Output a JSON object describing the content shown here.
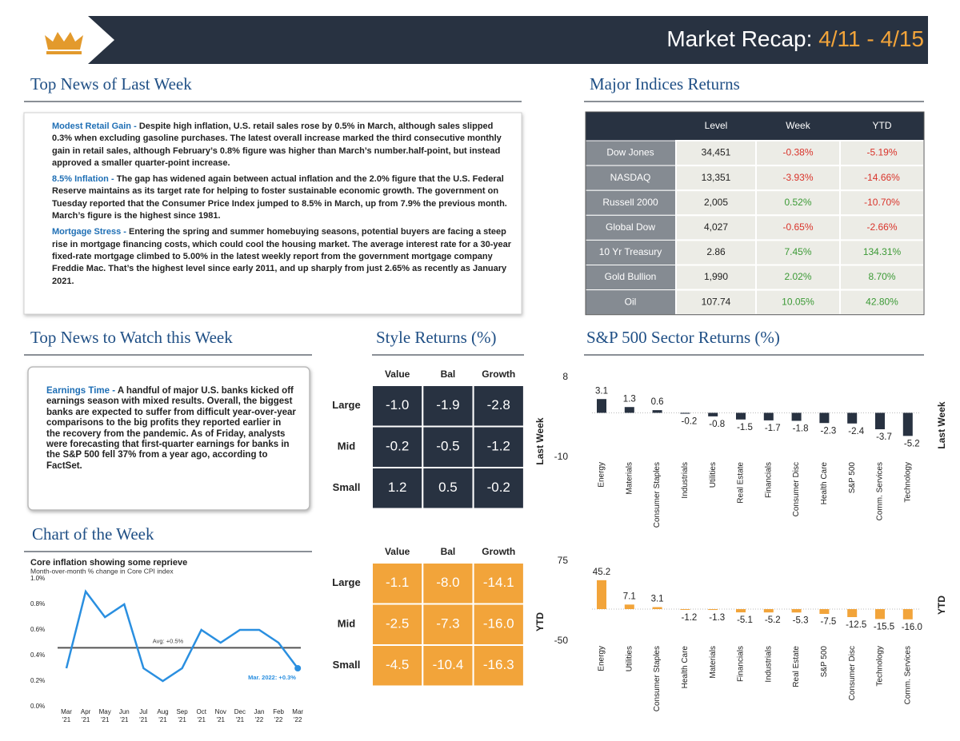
{
  "header": {
    "title": "Market Recap:",
    "dates": "4/11 - 4/15"
  },
  "top_news": {
    "heading": "Top News of Last Week",
    "items": [
      {
        "title": "Modest Retail Gain -",
        "text": "Despite high inflation, U.S. retail sales rose by 0.5% in March, although sales slipped 0.3% when excluding gasoline purchases. The latest overall increase marked the third consecutive monthly gain in retail sales, although February’s 0.8% figure was higher than March’s number.half-point, but instead approved a smaller quarter-point increase."
      },
      {
        "title": "8.5% Inflation -",
        "text": "The gap has widened again between actual inflation and the 2.0% figure that the U.S. Federal Reserve maintains as its target rate for helping to foster sustainable economic growth. The government on Tuesday reported that the Consumer Price Index jumped to 8.5% in March, up from 7.9% the previous month. March’s figure is the highest since 1981."
      },
      {
        "title": "Mortgage Stress -",
        "text": "Entering the spring and summer homebuying seasons, potential buyers are facing a steep rise in mortgage financing costs, which could cool the housing market. The average interest rate for a 30-year fixed-rate mortgage climbed to 5.00% in the latest weekly report from the government mortgage company Freddie Mac. That’s the highest level since early 2011, and up sharply from just 2.65% as recently as January 2021."
      }
    ]
  },
  "indices": {
    "heading": "Major Indices Returns",
    "columns": [
      "Level",
      "Week",
      "YTD"
    ],
    "rows": [
      {
        "name": "Dow Jones",
        "level": "34,451",
        "week": "-0.38%",
        "ytd": "-5.19%"
      },
      {
        "name": "NASDAQ",
        "level": "13,351",
        "week": "-3.93%",
        "ytd": "-14.66%"
      },
      {
        "name": "Russell 2000",
        "level": "2,005",
        "week": "0.52%",
        "ytd": "-10.70%"
      },
      {
        "name": "Global Dow",
        "level": "4,027",
        "week": "-0.65%",
        "ytd": "-2.66%"
      },
      {
        "name": "10 Yr Treasury",
        "level": "2.86",
        "week": "7.45%",
        "ytd": "134.31%"
      },
      {
        "name": "Gold Bullion",
        "level": "1,990",
        "week": "2.02%",
        "ytd": "8.70%"
      },
      {
        "name": "Oil",
        "level": "107.74",
        "week": "10.05%",
        "ytd": "42.80%"
      }
    ]
  },
  "watch": {
    "heading": "Top News to Watch this Week",
    "items": [
      {
        "title": "Earnings Time -",
        "text": "A handful of major U.S. banks kicked off earnings season with mixed results. Overall, the biggest banks are expected to suffer from difficult year-over-year comparisons to the big profits they reported earlier in the recovery from the pandemic. As of Friday, analysts were forecasting that first-quarter earnings for banks in the S&P 500 fell 37% from a year ago, according to FactSet."
      }
    ]
  },
  "style": {
    "heading": "Style Returns (%)",
    "columns": [
      "Value",
      "Bal",
      "Growth"
    ],
    "rows": [
      "Large",
      "Mid",
      "Small"
    ],
    "week": [
      [
        "-1.0",
        "-1.9",
        "-2.8"
      ],
      [
        "-0.2",
        "-0.5",
        "-1.2"
      ],
      [
        "1.2",
        "0.5",
        "-0.2"
      ]
    ],
    "ytd": [
      [
        "-1.1",
        "-8.0",
        "-14.1"
      ],
      [
        "-2.5",
        "-7.3",
        "-16.0"
      ],
      [
        "-4.5",
        "-10.4",
        "-16.3"
      ]
    ],
    "week_color": "#283241",
    "ytd_color": "#f2a43a"
  },
  "sectors": {
    "heading": "S&P 500 Sector Returns (%)"
  },
  "chart_of_week": {
    "heading": "Chart of the Week"
  },
  "chart_data": [
    {
      "type": "bar",
      "y_label": "Last Week",
      "color": "#283241",
      "categories": [
        "Energy",
        "Materials",
        "Consumer Staples",
        "Industrials",
        "Utilities",
        "Real Estate",
        "Financials",
        "Consumer Disc",
        "Health Care",
        "S&P 500",
        "Comm. Services",
        "Technology"
      ],
      "values": [
        3.1,
        1.3,
        0.6,
        -0.2,
        -0.8,
        -1.5,
        -1.7,
        -1.8,
        -2.3,
        -2.4,
        -3.7,
        -5.2
      ],
      "ylim": [
        -10,
        8
      ],
      "yticks": [
        -10,
        8
      ]
    },
    {
      "type": "bar",
      "y_label": "YTD",
      "color": "#f2a43a",
      "categories": [
        "Energy",
        "Utilities",
        "Consumer Staples",
        "Health Care",
        "Materials",
        "Financials",
        "Industrials",
        "Real Estate",
        "S&P 500",
        "Consumer Disc",
        "Technology",
        "Comm. Services"
      ],
      "values": [
        45.2,
        7.1,
        3.1,
        -1.2,
        -1.3,
        -5.1,
        -5.2,
        -5.3,
        -7.5,
        -12.5,
        -15.5,
        -16.0
      ],
      "value_labels": [
        "45.2",
        "7.1",
        "3.1",
        "-1.2",
        "-1.3",
        "-5.1",
        "-5.2",
        "-5.3",
        "-7.5",
        "-12.5",
        "-15.5",
        "-16.0"
      ],
      "ylim": [
        -50,
        75
      ],
      "yticks": [
        -50,
        75
      ]
    },
    {
      "type": "line",
      "title": "Core inflation showing some reprieve",
      "subtitle": "Month-over-month % change in Core CPI index",
      "color": "#2a8fe0",
      "categories": [
        "Mar",
        "Apr",
        "May",
        "Jun",
        "Jul",
        "Aug",
        "Sep",
        "Oct",
        "Nov",
        "Dec",
        "Jan",
        "Feb",
        "Mar"
      ],
      "category_years": [
        "'21",
        "'21",
        "'21",
        "'21",
        "'21",
        "'21",
        "'21",
        "'21",
        "'21",
        "'21",
        "'22",
        "'22",
        "'22"
      ],
      "values": [
        0.3,
        0.9,
        0.7,
        0.8,
        0.3,
        0.2,
        0.3,
        0.6,
        0.5,
        0.6,
        0.6,
        0.5,
        0.3
      ],
      "ylim": [
        0,
        1.0
      ],
      "yticks": [
        {
          "value": 0,
          "label": "0.0%"
        },
        {
          "value": 0.2,
          "label": "0.2%"
        },
        {
          "value": 0.4,
          "label": "0.4%"
        },
        {
          "value": 0.6,
          "label": "0.6%"
        },
        {
          "value": 0.8,
          "label": "0.8%"
        },
        {
          "value": 1.0,
          "label": "1.0%"
        }
      ],
      "avg": 0.46,
      "avg_label": "Avg: +0.5%",
      "annotation": "Mar. 2022: +0.3%"
    }
  ]
}
